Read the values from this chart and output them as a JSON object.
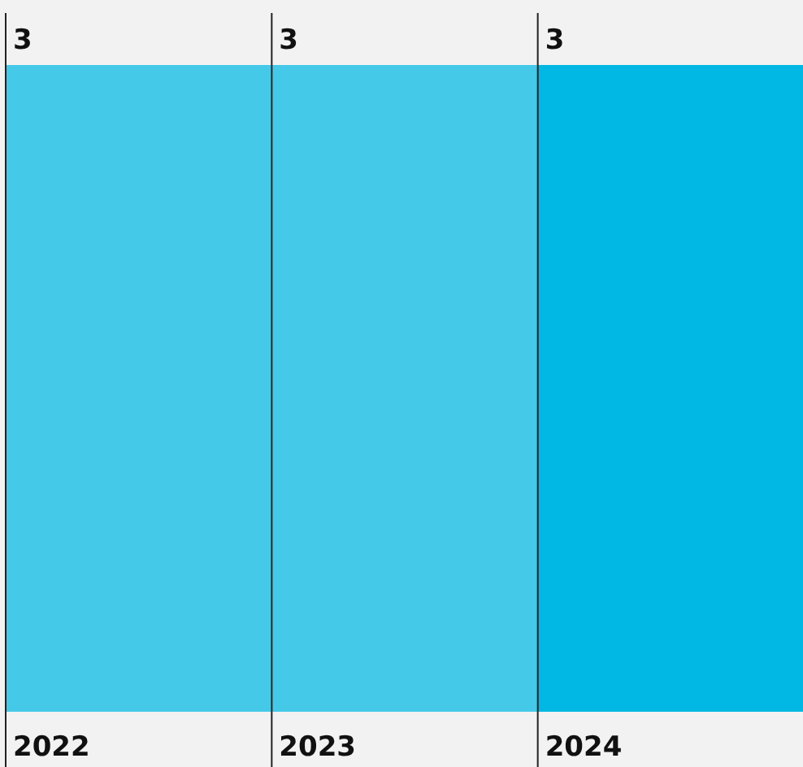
{
  "chart_data": {
    "type": "bar",
    "categories": [
      "2022",
      "2023",
      "2024"
    ],
    "values": [
      3,
      3,
      3
    ],
    "colors": [
      "#45c9e8",
      "#45c9e8",
      "#00b8e3"
    ],
    "data_labels": true
  }
}
